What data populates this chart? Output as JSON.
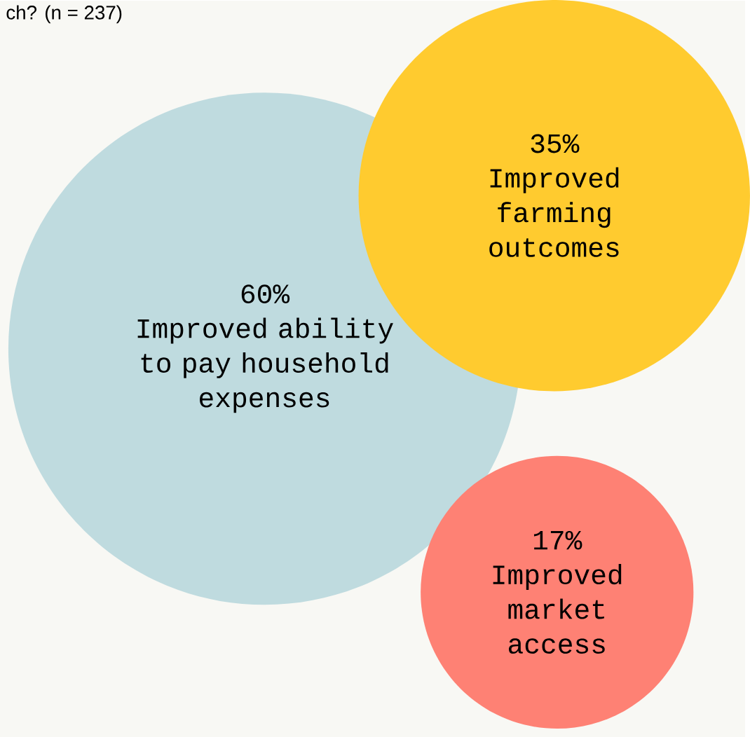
{
  "chart_data": {
    "type": "other",
    "annotations": [
      "ch? (n = 237)"
    ],
    "categories": [
      "Improved ability to pay household expenses",
      "Improved farming outcomes",
      "Improved market access"
    ],
    "values": [
      60,
      35,
      17
    ],
    "value_labels": [
      "60%",
      "35%",
      "17%"
    ],
    "colors": [
      "#bfdbdf",
      "#ffcb2f",
      "#fe8174"
    ]
  }
}
